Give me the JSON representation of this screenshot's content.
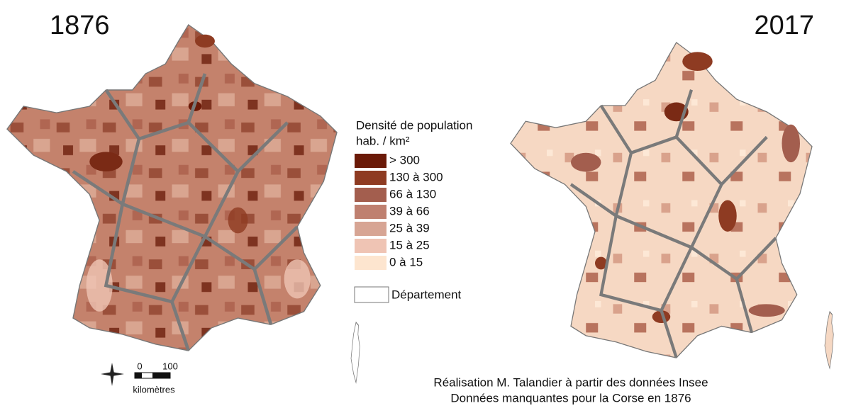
{
  "maps": [
    {
      "year": "1876"
    },
    {
      "year": "2017"
    }
  ],
  "legend": {
    "title": "Densité de population",
    "unit": "hab. / km²",
    "classes": [
      {
        "label": "> 300",
        "color": "#6b1a08"
      },
      {
        "label": "130 à 300",
        "color": "#8e3b22"
      },
      {
        "label": "66 à 130",
        "color": "#a35e4e"
      },
      {
        "label": "39 à 66",
        "color": "#bf8070"
      },
      {
        "label": "25 à 39",
        "color": "#d7a594"
      },
      {
        "label": "15 à 25",
        "color": "#efc4b4"
      },
      {
        "label": "0 à 15",
        "color": "#fde5cf"
      }
    ],
    "department": "Département"
  },
  "scale": {
    "ticks": [
      "0",
      "100"
    ],
    "unit": "kilomètres"
  },
  "credits": [
    "Réalisation M. Talandier à partir des données Insee",
    "Données manquantes pour la Corse en 1876"
  ]
}
